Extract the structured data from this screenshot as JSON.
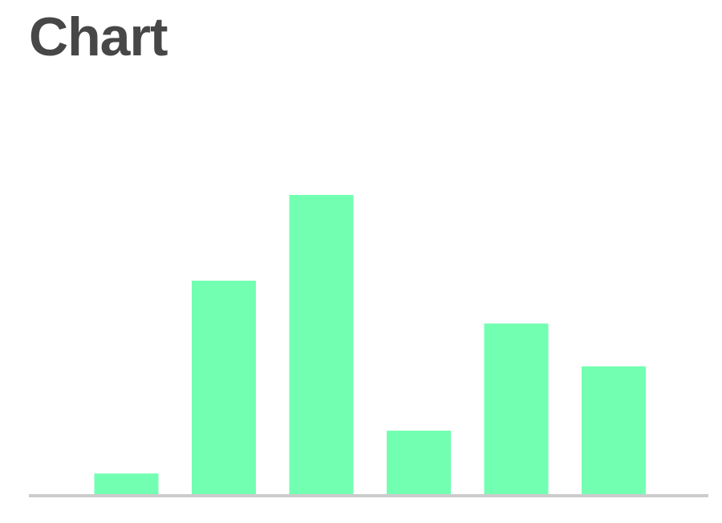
{
  "title": "Chart",
  "colors": {
    "bar": "#72ffb1",
    "axis": "#cccccc",
    "title": "#474747"
  },
  "chart_data": {
    "type": "bar",
    "title": "Chart",
    "categories": [
      "",
      "",
      "",
      "",
      "",
      ""
    ],
    "values": [
      1.0,
      10.0,
      14.0,
      3.0,
      8.0,
      6.0
    ],
    "ylim": [
      0,
      14.0
    ],
    "grid": false,
    "legend": "none",
    "xlabel": "",
    "ylabel": ""
  }
}
